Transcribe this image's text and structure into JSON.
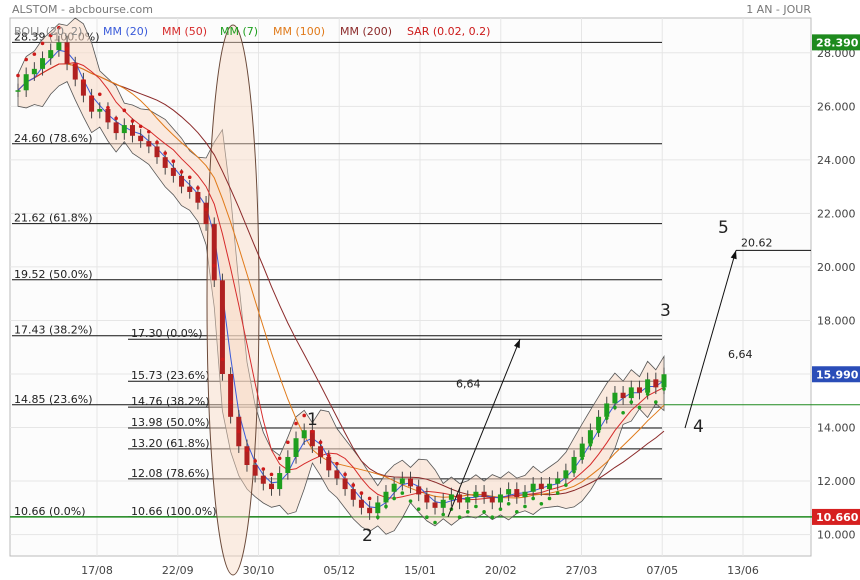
{
  "header": {
    "title": "ALSTOM - abcbourse.com",
    "period": "1 AN - JOUR"
  },
  "legend": [
    {
      "label": "BOLL (20, 2)",
      "color": "#888888"
    },
    {
      "label": "MM (20)",
      "color": "#3a5bd9"
    },
    {
      "label": "MM (50)",
      "color": "#d62b2b"
    },
    {
      "label": "MM (7)",
      "color": "#1e9e1e"
    },
    {
      "label": "MM (100)",
      "color": "#e07a1a"
    },
    {
      "label": "MM (200)",
      "color": "#8b2a2a"
    },
    {
      "label": "SAR (0.02, 0.2)",
      "color": "#cc1a1a"
    }
  ],
  "price_tags": [
    {
      "label": "28.390",
      "value": 28.39,
      "color": "#1e8a1e"
    },
    {
      "label": "15.990",
      "value": 15.99,
      "color": "#2a4db8"
    },
    {
      "label": "10.660",
      "value": 10.66,
      "color": "#d62020"
    }
  ],
  "waves": [
    "1",
    "2",
    "3",
    "4",
    "5"
  ],
  "chart_data": {
    "type": "candlestick",
    "y_ticks": [
      "10.000",
      "12.000",
      "14.000",
      "16.000",
      "18.000",
      "20.000",
      "22.000",
      "24.000",
      "26.000",
      "28.000"
    ],
    "ylim": [
      9.2,
      29.3
    ],
    "x_ticks": [
      "17/08",
      "22/09",
      "30/10",
      "05/12",
      "15/01",
      "20/02",
      "27/03",
      "07/05",
      "13/06"
    ],
    "grid": true,
    "legend_placement": "top-left",
    "fib_main": [
      {
        "label": "28.39  (100.0%)",
        "value": 28.39
      },
      {
        "label": "24.60  (78.6%)",
        "value": 24.6
      },
      {
        "label": "21.62  (61.8%)",
        "value": 21.62
      },
      {
        "label": "19.52  (50.0%)",
        "value": 19.52
      },
      {
        "label": "17.43  (38.2%)",
        "value": 17.43
      },
      {
        "label": "14.85  (23.6%)",
        "value": 14.85
      },
      {
        "label": "10.66  (0.0%)",
        "value": 10.66
      }
    ],
    "fib_secondary": [
      {
        "label": "17.30  (0.0%)",
        "value": 17.3
      },
      {
        "label": "15.73  (23.6%)",
        "value": 15.73
      },
      {
        "label": "14.76  (38.2%)",
        "value": 14.76
      },
      {
        "label": "13.98  (50.0%)",
        "value": 13.98
      },
      {
        "label": "13.20  (61.8%)",
        "value": 13.2
      },
      {
        "label": "12.08  (78.6%)",
        "value": 12.08
      },
      {
        "label": "10.66  (100.0%)",
        "value": 10.66
      }
    ],
    "target": {
      "label": "20.62",
      "value": 20.62
    },
    "projection_labels": [
      "6,64",
      "6,64"
    ],
    "close_series": [
      26.6,
      27.2,
      27.4,
      27.8,
      28.1,
      28.39,
      27.6,
      27.0,
      26.4,
      25.8,
      25.9,
      25.4,
      25.0,
      25.3,
      24.9,
      24.7,
      24.5,
      24.1,
      23.7,
      23.4,
      23.0,
      22.8,
      22.4,
      21.6,
      19.5,
      16.0,
      14.4,
      13.3,
      12.6,
      12.2,
      11.9,
      11.7,
      12.3,
      12.9,
      13.6,
      13.9,
      13.3,
      12.9,
      12.4,
      12.1,
      11.7,
      11.3,
      11.0,
      10.8,
      11.2,
      11.6,
      11.9,
      12.1,
      11.8,
      11.5,
      11.2,
      11.0,
      11.3,
      11.5,
      11.2,
      11.4,
      11.6,
      11.4,
      11.2,
      11.5,
      11.7,
      11.4,
      11.6,
      11.9,
      11.7,
      11.9,
      12.1,
      12.4,
      12.9,
      13.4,
      13.9,
      14.4,
      14.9,
      15.3,
      15.1,
      15.5,
      15.3,
      15.8,
      15.5,
      15.99
    ]
  }
}
